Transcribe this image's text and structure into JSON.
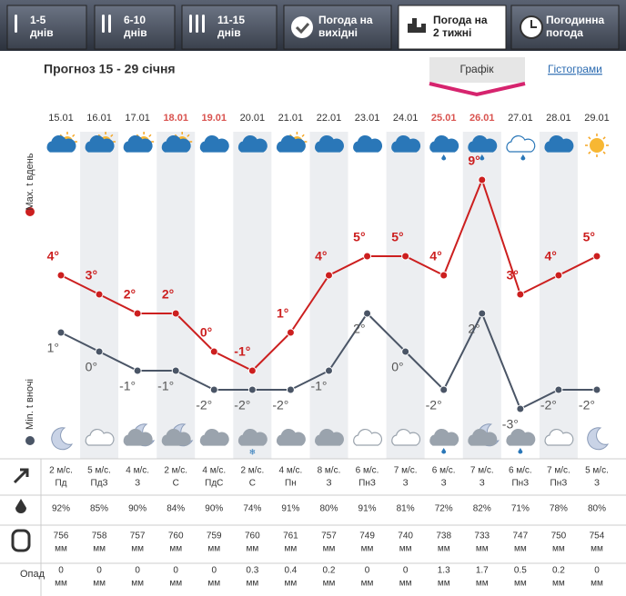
{
  "active_tab": 4,
  "tabs": [
    [
      "1-5",
      "днів"
    ],
    [
      "6-10",
      "днів"
    ],
    [
      "11-15",
      "днів"
    ],
    [
      "Погода на",
      "вихідні"
    ],
    [
      "Погода на",
      "2 тижні"
    ],
    [
      "Погодинна",
      "погода"
    ]
  ],
  "title": "Прогноз 15 - 29 січня",
  "view_buttons": [
    "Графік",
    "Гістограми"
  ],
  "chart_data": {
    "type": "line",
    "categories": [
      "15.01",
      "16.01",
      "17.01",
      "18.01",
      "19.01",
      "20.01",
      "21.01",
      "22.01",
      "23.01",
      "24.01",
      "25.01",
      "26.01",
      "27.01",
      "28.01",
      "29.01"
    ],
    "category_colors": [
      "#333333",
      "#333333",
      "#333333",
      "#d9534f",
      "#d9534f",
      "#333333",
      "#333333",
      "#333333",
      "#333333",
      "#333333",
      "#d9534f",
      "#d9534f",
      "#333333",
      "#333333",
      "#333333"
    ],
    "series": [
      {
        "name": "Max. t вдень",
        "color": "#cc1f1f",
        "values": [
          4,
          3,
          2,
          2,
          0,
          -1,
          1,
          4,
          5,
          5,
          4,
          9,
          3,
          4,
          5
        ],
        "value_labels": [
          "4°",
          "3°",
          "2°",
          "2°",
          "0°",
          "-1°",
          "1°",
          "4°",
          "5°",
          "5°",
          "4°",
          "9°",
          "3°",
          "4°",
          "5°"
        ]
      },
      {
        "name": "Min. t вночі",
        "color": "#4a5566",
        "values": [
          1,
          0,
          -1,
          -1,
          -2,
          -2,
          -2,
          -1,
          2,
          0,
          -2,
          2,
          -3,
          -2,
          -2
        ],
        "value_labels": [
          "1°",
          "0°",
          "-1°",
          "-1°",
          "-2°",
          "-2°",
          "-2°",
          "-1°",
          "2°",
          "0°",
          "-2°",
          "2°",
          "-3°",
          "-2°",
          "-2°"
        ]
      }
    ]
  },
  "table": {
    "wind": [
      [
        "2 м/с.",
        "Пд"
      ],
      [
        "5 м/с.",
        "ПдЗ"
      ],
      [
        "4 м/с.",
        "З"
      ],
      [
        "2 м/с.",
        "С"
      ],
      [
        "4 м/с.",
        "ПдС"
      ],
      [
        "2 м/с.",
        "С"
      ],
      [
        "4 м/с.",
        "Пн"
      ],
      [
        "8 м/с.",
        "З"
      ],
      [
        "6 м/с.",
        "ПнЗ"
      ],
      [
        "7 м/с.",
        "З"
      ],
      [
        "6 м/с.",
        "З"
      ],
      [
        "7 м/с.",
        "З"
      ],
      [
        "6 м/с.",
        "ПнЗ"
      ],
      [
        "7 м/с.",
        "ПнЗ"
      ],
      [
        "5 м/с.",
        "З"
      ]
    ],
    "humidity": [
      "92%",
      "85%",
      "90%",
      "84%",
      "90%",
      "74%",
      "91%",
      "80%",
      "91%",
      "81%",
      "72%",
      "82%",
      "71%",
      "78%",
      "80%"
    ],
    "pressure": [
      [
        "756",
        "мм"
      ],
      [
        "758",
        "мм"
      ],
      [
        "757",
        "мм"
      ],
      [
        "760",
        "мм"
      ],
      [
        "759",
        "мм"
      ],
      [
        "760",
        "мм"
      ],
      [
        "761",
        "мм"
      ],
      [
        "757",
        "мм"
      ],
      [
        "749",
        "мм"
      ],
      [
        "740",
        "мм"
      ],
      [
        "738",
        "мм"
      ],
      [
        "733",
        "мм"
      ],
      [
        "747",
        "мм"
      ],
      [
        "750",
        "мм"
      ],
      [
        "754",
        "мм"
      ]
    ],
    "precipitation_label": "Опад",
    "precipitation": [
      [
        "0",
        "мм"
      ],
      [
        "0",
        "мм"
      ],
      [
        "0",
        "мм"
      ],
      [
        "0",
        "мм"
      ],
      [
        "0",
        "мм"
      ],
      [
        "0.3",
        "мм"
      ],
      [
        "0.4",
        "мм"
      ],
      [
        "0.2",
        "мм"
      ],
      [
        "0",
        "мм"
      ],
      [
        "0",
        "мм"
      ],
      [
        "1.3",
        "мм"
      ],
      [
        "1.7",
        "мм"
      ],
      [
        "0.5",
        "мм"
      ],
      [
        "0.2",
        "мм"
      ],
      [
        "0",
        "мм"
      ]
    ]
  }
}
